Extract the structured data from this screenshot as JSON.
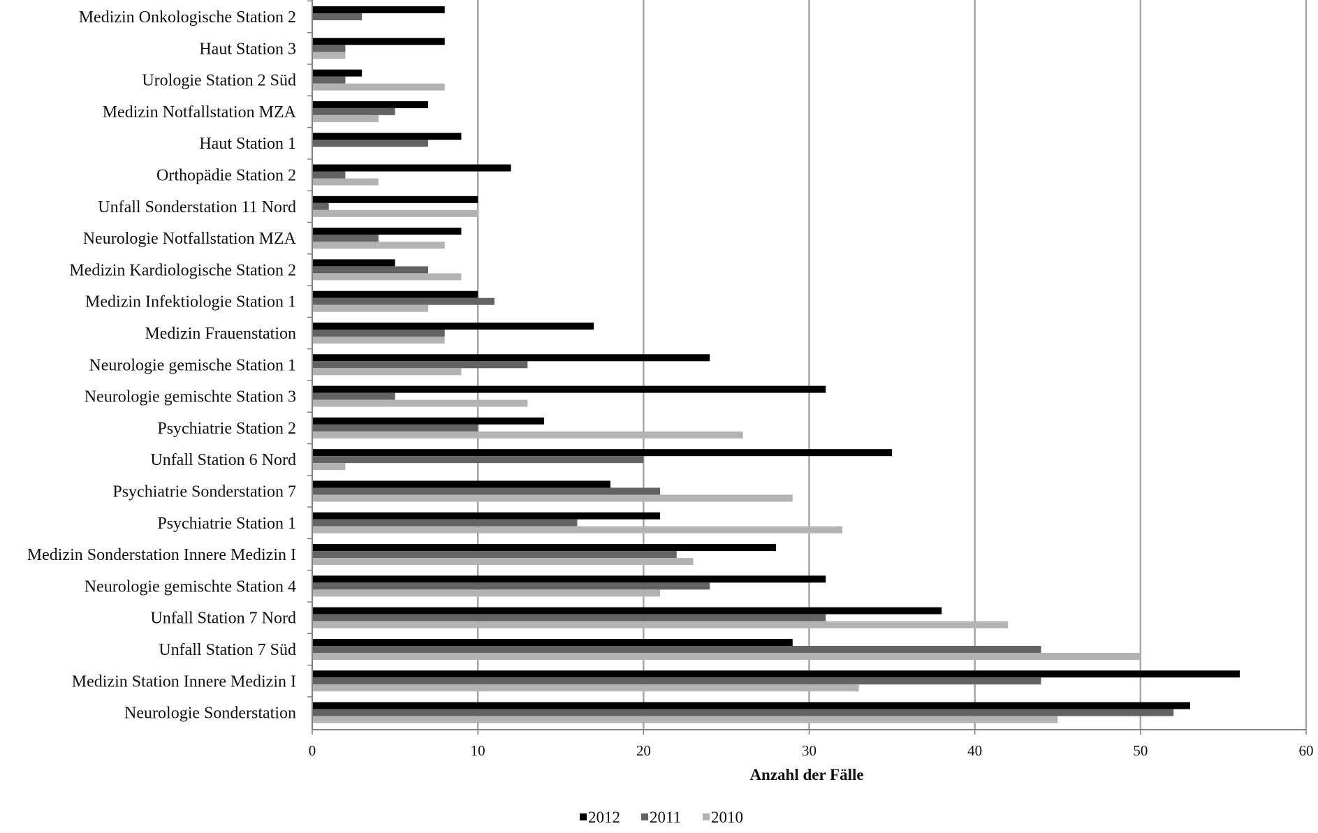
{
  "chart_data": {
    "type": "bar",
    "orientation": "horizontal",
    "title": "",
    "xlabel": "Anzahl der Fälle",
    "ylabel": "",
    "xlim": [
      0,
      60
    ],
    "x_ticks": [
      "0",
      "10",
      "20",
      "30",
      "40",
      "50",
      "60"
    ],
    "grid": "vertical",
    "legend_position": "bottom",
    "categories": [
      "Medizin Onkologische Station 2",
      "Haut Station 3",
      "Urologie Station 2 Süd",
      "Medizin Notfallstation MZA",
      "Haut Station 1",
      "Orthopädie Station 2",
      "Unfall Sonderstation 11 Nord",
      "Neurologie Notfallstation MZA",
      "Medizin Kardiologische Station 2",
      "Medizin Infektiologie Station 1",
      "Medizin Frauenstation",
      "Neurologie gemische Station 1",
      "Neurologie gemischte Station 3",
      "Psychiatrie Station 2",
      "Unfall Station 6 Nord",
      "Psychiatrie Sonderstation 7",
      "Psychiatrie Station 1",
      "Medizin Sonderstation Innere Medizin I",
      "Neurologie gemischte Station 4",
      "Unfall Station 7 Nord",
      "Unfall Station 7  Süd",
      "Medizin Station Innere Medizin I",
      "Neurologie Sonderstation"
    ],
    "series": [
      {
        "name": "2012",
        "color": "#000000",
        "values": [
          8,
          8,
          3,
          7,
          9,
          12,
          10,
          9,
          5,
          10,
          17,
          24,
          31,
          14,
          35,
          18,
          21,
          28,
          31,
          38,
          29,
          56,
          53
        ]
      },
      {
        "name": "2011",
        "color": "#636363",
        "values": [
          3,
          2,
          2,
          5,
          7,
          2,
          1,
          4,
          7,
          11,
          8,
          13,
          5,
          10,
          20,
          21,
          16,
          22,
          24,
          31,
          44,
          44,
          52
        ]
      },
      {
        "name": "2010",
        "color": "#b3b3b3",
        "values": [
          0,
          2,
          8,
          4,
          0,
          4,
          10,
          8,
          9,
          7,
          8,
          9,
          13,
          26,
          2,
          29,
          32,
          23,
          21,
          42,
          50,
          33,
          45
        ]
      }
    ]
  },
  "colors": {
    "grid": "#a6a6a6",
    "axis": "#7f7f7f"
  }
}
